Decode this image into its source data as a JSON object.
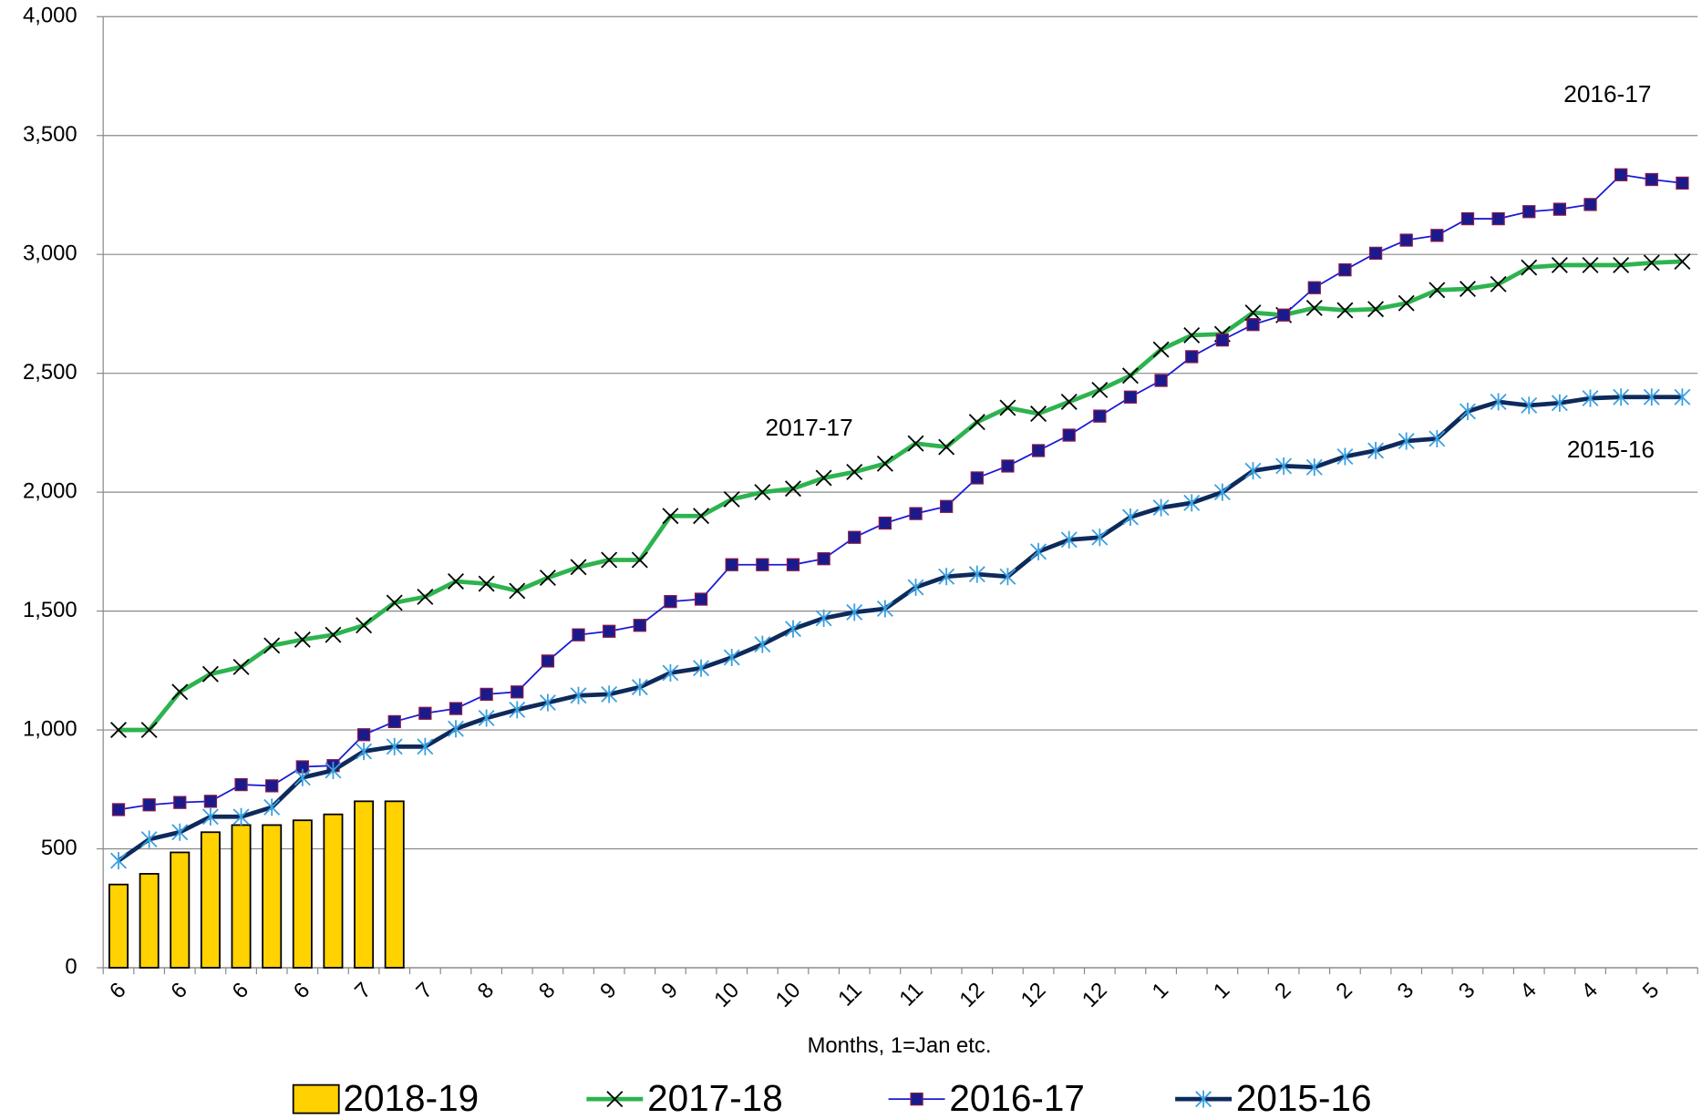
{
  "chart_data": {
    "type": "combo",
    "x_label": "Months, 1=Jan etc.",
    "categories": [
      "6",
      null,
      "6",
      null,
      "6",
      null,
      "6",
      null,
      "7",
      null,
      "7",
      null,
      "8",
      null,
      "8",
      null,
      "9",
      null,
      "9",
      null,
      "10",
      null,
      "10",
      null,
      "11",
      null,
      "11",
      null,
      "12",
      null,
      "12",
      null,
      "12",
      null,
      "1",
      null,
      "1",
      null,
      "2",
      null,
      "2",
      null,
      "3",
      null,
      "3",
      null,
      "4",
      null,
      "4",
      null,
      "5",
      null
    ],
    "ylim": [
      0,
      4000
    ],
    "yticks": [
      0,
      500,
      {
        "value": 1000,
        "label": "1,000"
      },
      {
        "value": 1500,
        "label": "1,500"
      },
      {
        "value": 2000,
        "label": "2,000"
      },
      {
        "value": 2500,
        "label": "2,500"
      },
      {
        "value": 3000,
        "label": "3,000"
      },
      {
        "value": 3500,
        "label": "3,500"
      },
      {
        "value": 4000,
        "label": "4,000"
      }
    ],
    "grid": true,
    "legend": "bottom",
    "annotations": [
      "2016-17",
      "2017-17",
      "2015-16"
    ],
    "series": [
      {
        "name": "2018-19",
        "type": "bar",
        "color": "#ffd200",
        "values": [
          350,
          395,
          485,
          570,
          600,
          600,
          620,
          645,
          700,
          700,
          null,
          null,
          null,
          null,
          null,
          null,
          null,
          null,
          null,
          null,
          null,
          null,
          null,
          null,
          null,
          null,
          null,
          null,
          null,
          null,
          null,
          null,
          null,
          null,
          null,
          null,
          null,
          null,
          null,
          null,
          null,
          null,
          null,
          null,
          null,
          null,
          null,
          null,
          null,
          null,
          null,
          null
        ]
      },
      {
        "name": "2017-18",
        "type": "line",
        "color": "#2db34f",
        "marker": "x",
        "values": [
          1000,
          1000,
          1160,
          1235,
          1265,
          1355,
          1380,
          1400,
          1440,
          1535,
          1560,
          1625,
          1615,
          1585,
          1640,
          1685,
          1715,
          1715,
          1900,
          1900,
          1970,
          2000,
          2015,
          2060,
          2085,
          2120,
          2205,
          2190,
          2295,
          2355,
          2330,
          2380,
          2430,
          2490,
          2600,
          2660,
          2665,
          2755,
          2745,
          2775,
          2765,
          2770,
          2795,
          2850,
          2855,
          2875,
          2945,
          2955,
          2955,
          2955,
          2965,
          2970
        ]
      },
      {
        "name": "2016-17",
        "type": "line",
        "color": "#1a1ad6",
        "marker": "square",
        "values": [
          665,
          685,
          695,
          700,
          770,
          765,
          845,
          850,
          980,
          1035,
          1070,
          1090,
          1150,
          1160,
          1290,
          1400,
          1415,
          1440,
          1540,
          1550,
          1695,
          1695,
          1695,
          1720,
          1810,
          1870,
          1910,
          1940,
          2060,
          2110,
          2175,
          2240,
          2320,
          2400,
          2470,
          2570,
          2640,
          2705,
          2745,
          2860,
          2935,
          3005,
          3060,
          3080,
          3150,
          3150,
          3180,
          3190,
          3210,
          3335,
          3315,
          3300
        ]
      },
      {
        "name": "2015-16",
        "type": "line",
        "color": "#0d2a5c",
        "marker": "asterisk",
        "values": [
          450,
          540,
          570,
          635,
          635,
          675,
          800,
          830,
          910,
          930,
          930,
          1005,
          1050,
          1085,
          1115,
          1145,
          1150,
          1180,
          1240,
          1260,
          1305,
          1360,
          1425,
          1470,
          1495,
          1510,
          1600,
          1645,
          1655,
          1645,
          1750,
          1800,
          1810,
          1895,
          1935,
          1955,
          2000,
          2090,
          2110,
          2105,
          2150,
          2175,
          2215,
          2225,
          2340,
          2380,
          2365,
          2375,
          2395,
          2400,
          2400,
          2400
        ]
      }
    ]
  }
}
